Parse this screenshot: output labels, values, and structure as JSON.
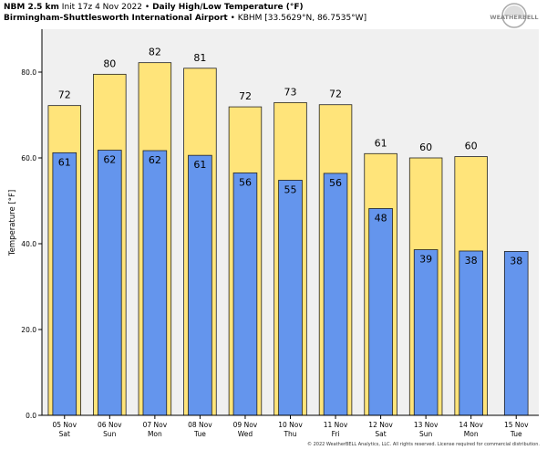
{
  "header": {
    "model": "NBM 2.5 km",
    "init": "Init 17z 4 Nov 2022",
    "bullet": "•",
    "title": "Daily High/Low Temperature (°F)",
    "station": "Birmingham-Shuttlesworth International Airport",
    "station_info": "KBHM [33.5629°N, 86.7535°W]"
  },
  "logo": {
    "text": "WEATHERBELL",
    "icon": "weatherbell-logo-icon"
  },
  "copyright": "© 2022 WeatherBELL Analytics, LLC. All rights reserved. License required for commercial distribution.",
  "colors": {
    "high": "#FFE47A",
    "low": "#6495ED",
    "plot_bg": "#F0F0F0"
  },
  "chart_data": {
    "type": "bar",
    "ylabel": "Temperature [°F]",
    "ylim": [
      0,
      90
    ],
    "yticks": [
      "0.0",
      "20.0",
      "40.0",
      "60.0",
      "80.0"
    ],
    "categories": [
      [
        "05 Nov",
        "Sat"
      ],
      [
        "06 Nov",
        "Sun"
      ],
      [
        "07 Nov",
        "Mon"
      ],
      [
        "08 Nov",
        "Tue"
      ],
      [
        "09 Nov",
        "Wed"
      ],
      [
        "10 Nov",
        "Thu"
      ],
      [
        "11 Nov",
        "Fri"
      ],
      [
        "12 Nov",
        "Sat"
      ],
      [
        "13 Nov",
        "Sun"
      ],
      [
        "14 Nov",
        "Mon"
      ],
      [
        "15 Nov",
        "Tue"
      ]
    ],
    "series": [
      {
        "values": [
          72.2,
          79.5,
          82.2,
          80.9,
          71.9,
          72.9,
          72.4,
          61.0,
          60.0,
          60.3,
          null
        ],
        "labels": [
          "72",
          "80",
          "82",
          "81",
          "72",
          "73",
          "72",
          "61",
          "60",
          "60",
          ""
        ]
      },
      {
        "values": [
          61.2,
          61.8,
          61.7,
          60.6,
          56.5,
          54.8,
          56.4,
          48.2,
          38.6,
          38.3,
          38.2
        ],
        "labels": [
          "61",
          "62",
          "62",
          "61",
          "56",
          "55",
          "56",
          "48",
          "39",
          "38",
          "38"
        ]
      }
    ]
  }
}
